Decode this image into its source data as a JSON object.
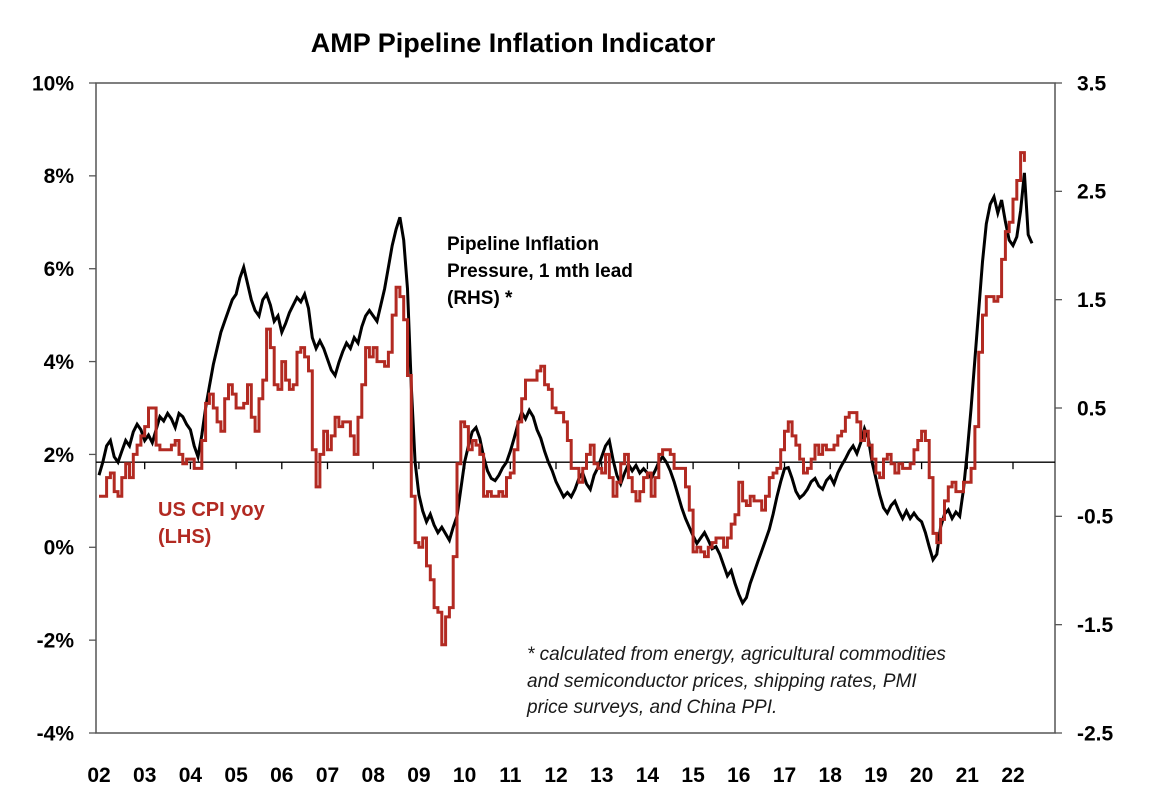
{
  "page": {
    "background": "#ffffff"
  },
  "colors": {
    "cpi_red": "#b22a22",
    "pipeline_black": "#000000",
    "plot_border": "#555555",
    "axis_line": "#000000"
  },
  "chart_data": {
    "type": "line",
    "title": "AMP Pipeline Inflation Indicator",
    "legend_position": "annotations-inside-plot",
    "grid": "off",
    "annotations": {
      "pipeline_label_lines": [
        "Pipeline Inflation",
        "Pressure, 1 mth lead",
        "(RHS) *"
      ],
      "cpi_label_lines": [
        "US CPI yoy",
        "(LHS)"
      ]
    },
    "footnote_lines": [
      "* calculated from energy, agricultural commodities",
      "and semiconductor prices, shipping rates, PMI",
      "price surveys, and China PPI."
    ],
    "x_axis": {
      "tick_labels": [
        "02",
        "03",
        "04",
        "05",
        "06",
        "07",
        "08",
        "09",
        "10",
        "11",
        "12",
        "13",
        "14",
        "15",
        "16",
        "17",
        "18",
        "19",
        "20",
        "21",
        "22"
      ],
      "first_label_year": 2002,
      "domain_start": 2002,
      "domain_end": 2022.92,
      "year_tick_start": 2003,
      "year_tick_end": 2022
    },
    "left_axis": {
      "tick_labels": [
        "10%",
        "8%",
        "6%",
        "4%",
        "2%",
        "0%",
        "-2%",
        "-4%"
      ],
      "max": 10,
      "min": -4,
      "unit": "%"
    },
    "right_axis": {
      "tick_labels": [
        "3.5",
        "2.5",
        "1.5",
        "0.5",
        "-0.5",
        "-1.5",
        "-2.5"
      ],
      "max": 3.5,
      "min": -2.5
    },
    "zero_line": {
      "axis": "right",
      "value": 0
    },
    "series": [
      {
        "name": "Pipeline Inflation Pressure, 1 mth lead (RHS)",
        "axis": "right",
        "color": "#000000",
        "line_style": "linear",
        "start_year": 2002,
        "points_per_year": 12,
        "values": [
          -0.12,
          0.0,
          0.15,
          0.2,
          0.05,
          0.0,
          0.1,
          0.2,
          0.15,
          0.28,
          0.35,
          0.3,
          0.2,
          0.25,
          0.18,
          0.3,
          0.42,
          0.38,
          0.45,
          0.4,
          0.32,
          0.45,
          0.42,
          0.35,
          0.3,
          0.15,
          0.05,
          0.25,
          0.5,
          0.7,
          0.9,
          1.05,
          1.2,
          1.3,
          1.4,
          1.5,
          1.55,
          1.7,
          1.8,
          1.65,
          1.5,
          1.4,
          1.35,
          1.5,
          1.55,
          1.45,
          1.3,
          1.35,
          1.2,
          1.28,
          1.38,
          1.45,
          1.52,
          1.48,
          1.55,
          1.42,
          1.15,
          1.05,
          1.12,
          1.05,
          0.95,
          0.85,
          0.8,
          0.92,
          1.02,
          1.1,
          1.05,
          1.15,
          1.1,
          1.25,
          1.35,
          1.4,
          1.35,
          1.3,
          1.45,
          1.6,
          1.8,
          2.0,
          2.15,
          2.26,
          2.05,
          1.6,
          0.7,
          0.0,
          -0.3,
          -0.45,
          -0.55,
          -0.48,
          -0.58,
          -0.65,
          -0.6,
          -0.66,
          -0.72,
          -0.6,
          -0.5,
          -0.25,
          0.0,
          0.15,
          0.28,
          0.32,
          0.22,
          0.05,
          -0.08,
          -0.15,
          -0.17,
          -0.12,
          -0.05,
          0.0,
          0.1,
          0.22,
          0.35,
          0.46,
          0.4,
          0.48,
          0.42,
          0.3,
          0.22,
          0.1,
          0.0,
          -0.08,
          -0.18,
          -0.25,
          -0.32,
          -0.28,
          -0.32,
          -0.25,
          -0.15,
          -0.1,
          -0.2,
          -0.25,
          -0.12,
          -0.05,
          0.05,
          0.15,
          0.2,
          0.02,
          -0.12,
          -0.2,
          -0.1,
          -0.02,
          -0.08,
          -0.03,
          -0.1,
          -0.06,
          -0.1,
          -0.15,
          -0.08,
          0.0,
          0.05,
          0.0,
          -0.08,
          -0.18,
          -0.3,
          -0.42,
          -0.52,
          -0.6,
          -0.68,
          -0.75,
          -0.7,
          -0.65,
          -0.72,
          -0.8,
          -0.78,
          -0.85,
          -0.95,
          -1.05,
          -1.0,
          -1.12,
          -1.22,
          -1.3,
          -1.25,
          -1.12,
          -1.02,
          -0.92,
          -0.82,
          -0.72,
          -0.62,
          -0.48,
          -0.32,
          -0.18,
          -0.06,
          -0.05,
          -0.15,
          -0.27,
          -0.33,
          -0.3,
          -0.25,
          -0.18,
          -0.15,
          -0.22,
          -0.25,
          -0.17,
          -0.13,
          -0.2,
          -0.1,
          -0.03,
          0.03,
          0.1,
          0.15,
          0.08,
          0.18,
          0.31,
          0.22,
          0.0,
          -0.15,
          -0.3,
          -0.42,
          -0.47,
          -0.4,
          -0.36,
          -0.45,
          -0.52,
          -0.45,
          -0.52,
          -0.47,
          -0.52,
          -0.55,
          -0.65,
          -0.78,
          -0.9,
          -0.85,
          -0.6,
          -0.48,
          -0.44,
          -0.52,
          -0.46,
          -0.5,
          -0.25,
          0.1,
          0.5,
          0.95,
          1.4,
          1.85,
          2.2,
          2.38,
          2.45,
          2.3,
          2.42,
          2.22,
          2.05,
          2.0,
          2.08,
          2.32,
          2.67,
          2.1,
          2.02
        ]
      },
      {
        "name": "US CPI yoy (LHS)",
        "axis": "left",
        "color": "#b22a22",
        "line_style": "step",
        "start_year": 2002,
        "points_per_year": 12,
        "values": [
          1.1,
          1.1,
          1.5,
          1.6,
          1.2,
          1.1,
          1.5,
          1.8,
          1.5,
          2.0,
          2.2,
          2.4,
          2.6,
          3.0,
          3.0,
          2.2,
          2.1,
          2.1,
          2.1,
          2.2,
          2.3,
          2.0,
          1.8,
          1.9,
          1.9,
          1.7,
          1.7,
          2.3,
          3.1,
          3.3,
          3.0,
          2.7,
          2.5,
          3.2,
          3.5,
          3.3,
          3.0,
          3.0,
          3.1,
          3.5,
          2.8,
          2.5,
          3.2,
          3.6,
          4.7,
          4.3,
          3.5,
          3.4,
          4.0,
          3.6,
          3.4,
          3.5,
          4.2,
          4.3,
          4.1,
          3.8,
          2.1,
          1.3,
          2.0,
          2.5,
          2.1,
          2.4,
          2.8,
          2.6,
          2.7,
          2.7,
          2.4,
          2.0,
          2.8,
          3.5,
          4.3,
          4.1,
          4.3,
          4.0,
          4.0,
          3.9,
          4.2,
          5.0,
          5.6,
          5.4,
          4.9,
          3.7,
          1.1,
          0.1,
          0.0,
          0.2,
          -0.4,
          -0.7,
          -1.3,
          -1.4,
          -2.1,
          -1.5,
          -1.3,
          -0.2,
          1.8,
          2.7,
          2.6,
          2.1,
          2.3,
          2.2,
          2.0,
          1.1,
          1.2,
          1.1,
          1.1,
          1.2,
          1.1,
          1.5,
          1.6,
          2.1,
          2.7,
          3.2,
          3.6,
          3.6,
          3.6,
          3.8,
          3.9,
          3.5,
          3.4,
          3.0,
          2.9,
          2.9,
          2.7,
          2.3,
          1.7,
          1.7,
          1.4,
          1.7,
          2.0,
          2.2,
          1.8,
          1.7,
          1.6,
          2.0,
          1.5,
          1.1,
          1.4,
          1.8,
          2.0,
          1.5,
          1.2,
          1.0,
          1.2,
          1.5,
          1.6,
          1.1,
          1.5,
          2.0,
          2.1,
          2.1,
          2.0,
          1.7,
          1.7,
          1.7,
          1.3,
          0.8,
          -0.1,
          0.0,
          -0.1,
          -0.2,
          0.0,
          0.1,
          0.2,
          0.2,
          0.0,
          0.2,
          0.5,
          0.7,
          1.4,
          1.0,
          0.9,
          1.1,
          1.0,
          1.0,
          0.8,
          1.1,
          1.5,
          1.6,
          1.7,
          2.1,
          2.5,
          2.7,
          2.4,
          2.2,
          1.9,
          1.6,
          1.7,
          1.9,
          2.2,
          2.0,
          2.2,
          2.1,
          2.1,
          2.2,
          2.4,
          2.5,
          2.8,
          2.9,
          2.9,
          2.7,
          2.3,
          2.5,
          2.2,
          1.9,
          1.6,
          1.5,
          1.9,
          2.0,
          1.8,
          1.6,
          1.8,
          1.7,
          1.7,
          1.8,
          2.1,
          2.3,
          2.5,
          2.3,
          1.5,
          0.3,
          0.1,
          0.6,
          1.0,
          1.3,
          1.4,
          1.2,
          1.2,
          1.4,
          1.4,
          1.7,
          2.6,
          4.2,
          5.0,
          5.4,
          5.4,
          5.3,
          5.4,
          6.2,
          6.8,
          7.0,
          7.5,
          7.9,
          8.5,
          8.3
        ]
      }
    ]
  }
}
